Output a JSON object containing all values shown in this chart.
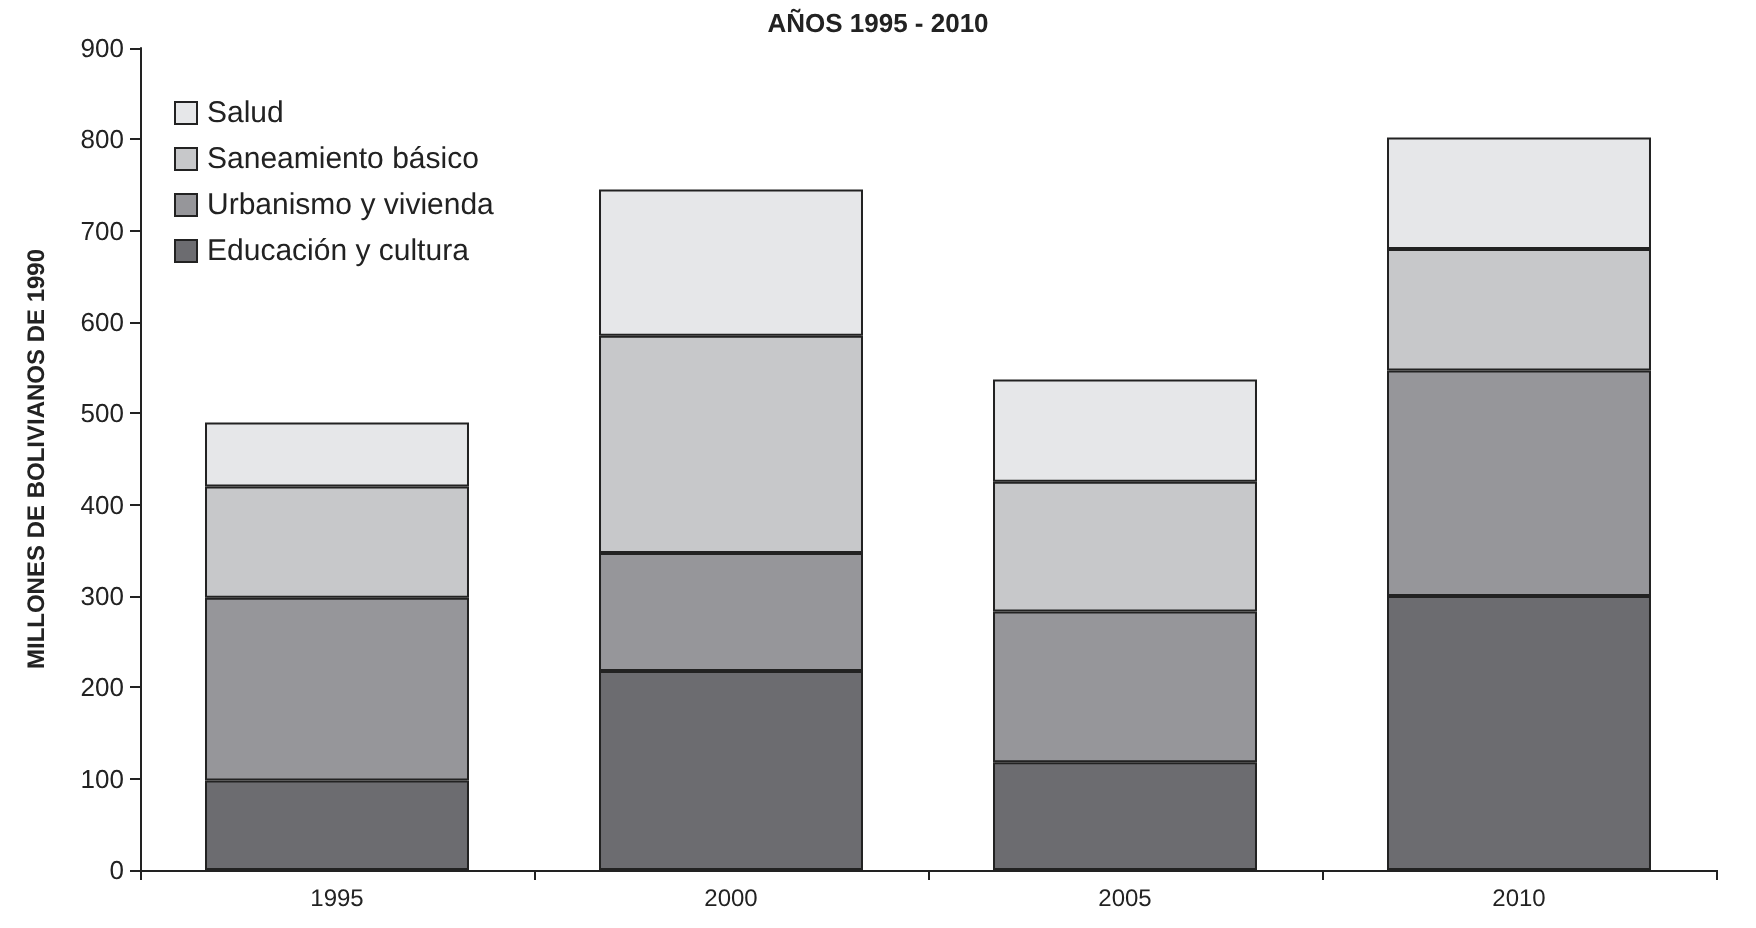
{
  "chart_data": {
    "type": "bar",
    "title": "AÑOS 1995 - 2010",
    "ylabel": "MILLONES DE BOLIVIANOS DE 1990",
    "categories": [
      "1995",
      "2000",
      "2005",
      "2010"
    ],
    "series": [
      {
        "name": "Educación y cultura",
        "color": "#6c6c70",
        "values": [
          98,
          218,
          118,
          300
        ]
      },
      {
        "name": "Urbanismo y vivienda",
        "color": "#96969a",
        "values": [
          200,
          129,
          165,
          247
        ]
      },
      {
        "name": "Saneamiento básico",
        "color": "#c7c8ca",
        "values": [
          122,
          238,
          142,
          133
        ]
      },
      {
        "name": "Salud",
        "color": "#e6e7e9",
        "values": [
          70,
          160,
          112,
          122
        ]
      }
    ],
    "stacked": true,
    "ylim": [
      0,
      900
    ],
    "yticks": [
      0,
      100,
      200,
      300,
      400,
      500,
      600,
      700,
      800,
      900
    ],
    "grid": false,
    "legend": "top left"
  }
}
